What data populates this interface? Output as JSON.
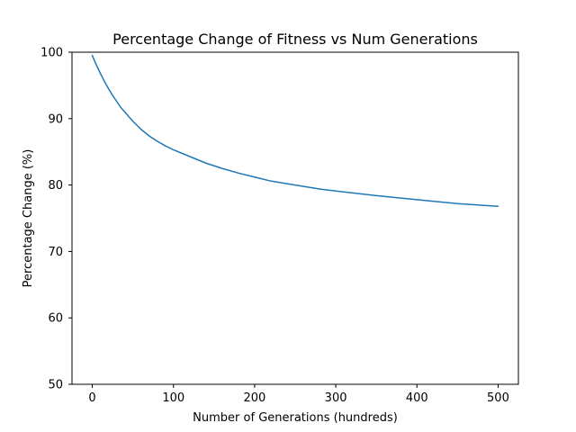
{
  "chart_data": {
    "type": "line",
    "title": "Percentage Change of Fitness vs Num Generations",
    "xlabel": "Number of Generations (hundreds)",
    "ylabel": "Percentage Change (%)",
    "xlim": [
      -25,
      525
    ],
    "ylim": [
      50,
      100
    ],
    "x_ticks": [
      0,
      100,
      200,
      300,
      400,
      500
    ],
    "y_ticks": [
      50,
      60,
      70,
      80,
      90,
      100
    ],
    "x_tick_labels": [
      "0",
      "100",
      "200",
      "300",
      "400",
      "500"
    ],
    "y_tick_labels": [
      "50",
      "60",
      "70",
      "80",
      "90",
      "100"
    ],
    "grid": false,
    "series": [
      {
        "color": "#1f77b4",
        "x": [
          0,
          5,
          10,
          15,
          20,
          25,
          30,
          35,
          40,
          45,
          50,
          60,
          70,
          80,
          90,
          100,
          120,
          140,
          160,
          180,
          200,
          220,
          250,
          280,
          300,
          350,
          400,
          450,
          500
        ],
        "y": [
          99.5,
          98.1,
          96.8,
          95.6,
          94.5,
          93.5,
          92.6,
          91.7,
          91.0,
          90.3,
          89.6,
          88.4,
          87.4,
          86.6,
          85.9,
          85.3,
          84.3,
          83.3,
          82.5,
          81.8,
          81.2,
          80.6,
          80.0,
          79.4,
          79.1,
          78.4,
          77.8,
          77.2,
          76.8
        ]
      }
    ]
  }
}
